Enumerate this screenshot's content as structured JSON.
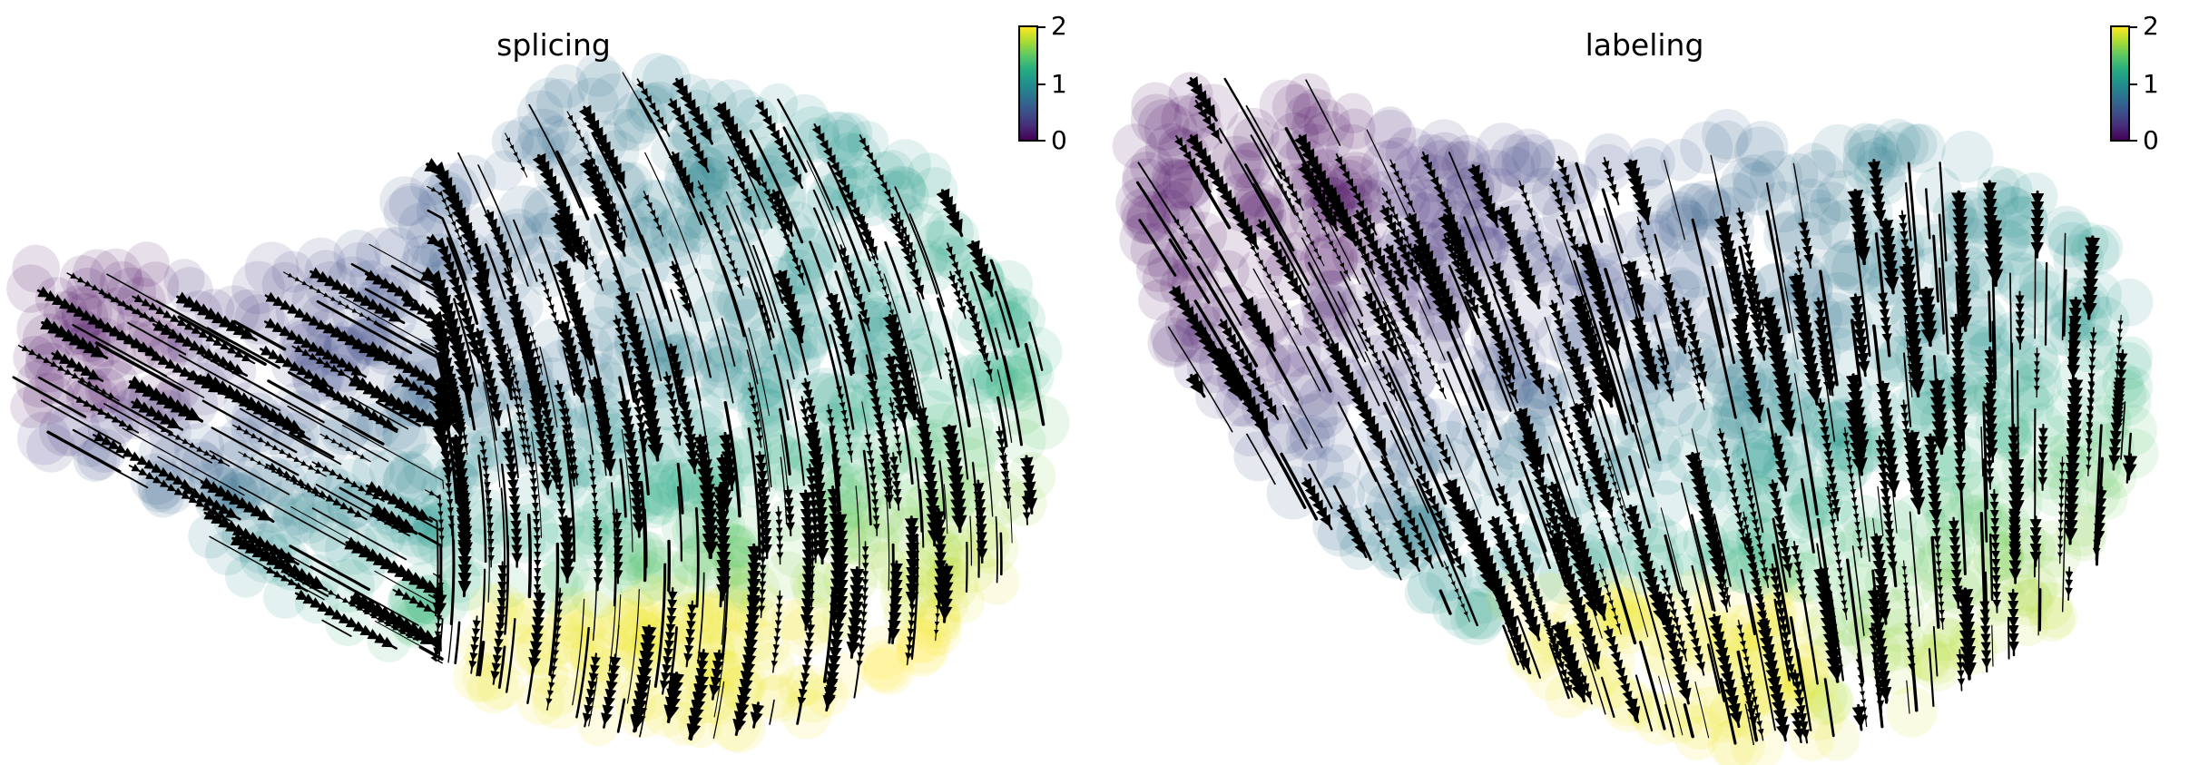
{
  "chart_data": [
    {
      "type": "scatter",
      "title": "splicing",
      "colorbar": {
        "min": 0,
        "max": 2,
        "ticks": [
          "0",
          "1",
          "2"
        ],
        "colormap": "viridis"
      },
      "overlay": "streamlines with arrows",
      "axes_visible": false
    },
    {
      "type": "scatter",
      "title": "labeling",
      "colorbar": {
        "min": 0,
        "max": 2,
        "ticks": [
          "0",
          "1",
          "2"
        ],
        "colormap": "viridis"
      },
      "overlay": "streamlines with arrows",
      "axes_visible": false
    }
  ],
  "colors": {
    "viridis": [
      "#440154",
      "#472c7a",
      "#3b518b",
      "#2c718e",
      "#21908d",
      "#27ad81",
      "#5cc863",
      "#aadc32",
      "#fde725"
    ],
    "stream": "#000000"
  }
}
